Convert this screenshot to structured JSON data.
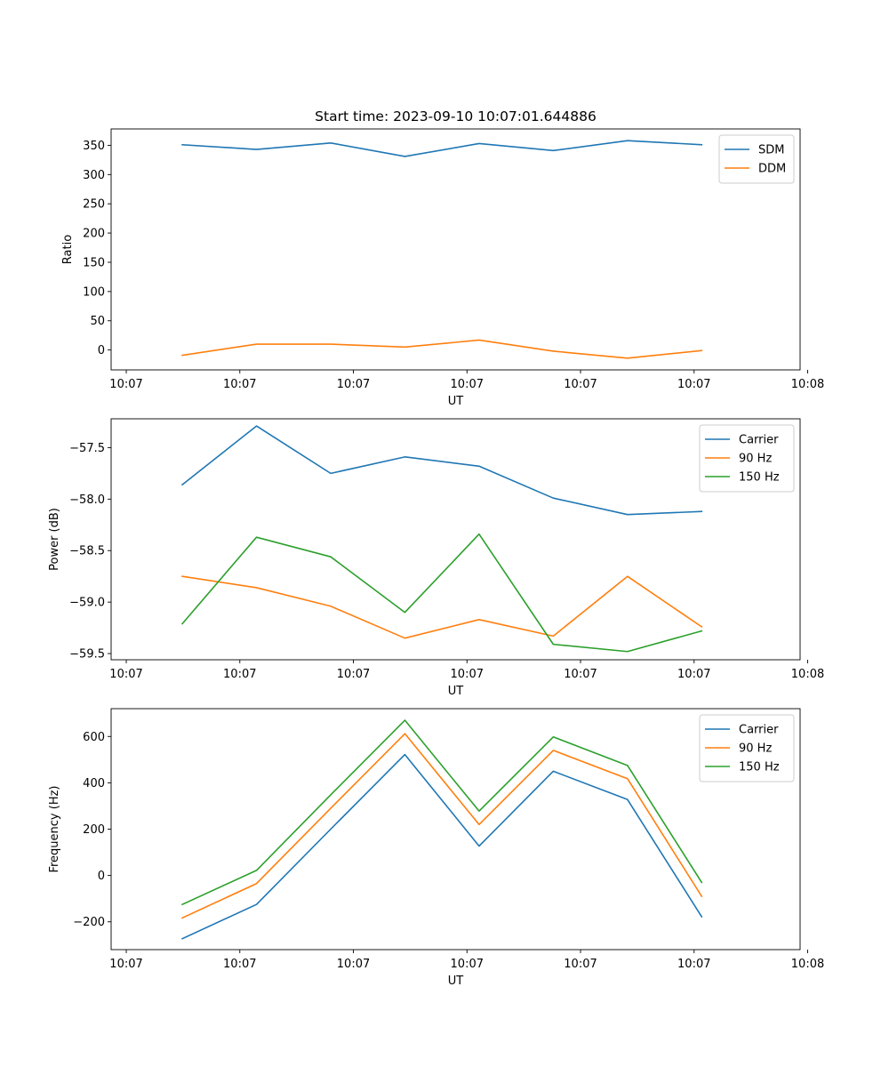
{
  "colors": {
    "blue": "#1f77b4",
    "orange": "#ff7f0e",
    "green": "#2ca02c"
  },
  "chart_data": [
    {
      "type": "line",
      "title": "Start time: 2023-09-10 10:07:01.644886",
      "xlabel": "UT",
      "ylabel": "Ratio",
      "xlim": [
        -0.2,
        8.9
      ],
      "ylim": [
        -34,
        378
      ],
      "xticks": [
        0,
        1.5,
        3,
        4.5,
        6,
        7.5,
        9
      ],
      "xtick_labels": [
        "10:07",
        "10:07",
        "10:07",
        "10:07",
        "10:07",
        "10:07",
        "10:08"
      ],
      "yticks": [
        0,
        50,
        100,
        150,
        200,
        250,
        300,
        350
      ],
      "ytick_labels": [
        "0",
        "50",
        "100",
        "150",
        "200",
        "250",
        "300",
        "350"
      ],
      "legend_position": "top-right",
      "x": [
        0.74,
        1.72,
        2.7,
        3.68,
        4.66,
        5.64,
        6.62,
        7.6
      ],
      "series": [
        {
          "name": "SDM",
          "color": "blue",
          "values": [
            351,
            343,
            354,
            331,
            353,
            341,
            358,
            351
          ]
        },
        {
          "name": "DDM",
          "color": "orange",
          "values": [
            -9,
            10,
            10,
            5,
            17,
            -2,
            -14,
            -1
          ]
        }
      ]
    },
    {
      "type": "line",
      "title": "",
      "xlabel": "UT",
      "ylabel": "Power (dB)",
      "xlim": [
        -0.2,
        8.9
      ],
      "ylim": [
        -59.56,
        -57.22
      ],
      "xticks": [
        0,
        1.5,
        3,
        4.5,
        6,
        7.5,
        9
      ],
      "xtick_labels": [
        "10:07",
        "10:07",
        "10:07",
        "10:07",
        "10:07",
        "10:07",
        "10:08"
      ],
      "yticks": [
        -59.5,
        -59.0,
        -58.5,
        -58.0,
        -57.5
      ],
      "ytick_labels": [
        "−59.5",
        "−59.0",
        "−58.5",
        "−58.0",
        "−57.5"
      ],
      "legend_position": "top-right",
      "x": [
        0.74,
        1.72,
        2.7,
        3.68,
        4.66,
        5.64,
        6.62,
        7.6
      ],
      "series": [
        {
          "name": "Carrier",
          "color": "blue",
          "values": [
            -57.86,
            -57.29,
            -57.75,
            -57.59,
            -57.68,
            -57.99,
            -58.15,
            -58.12
          ]
        },
        {
          "name": "90 Hz",
          "color": "orange",
          "values": [
            -58.75,
            -58.86,
            -59.04,
            -59.35,
            -59.17,
            -59.33,
            -58.75,
            -59.24
          ]
        },
        {
          "name": "150 Hz",
          "color": "green",
          "values": [
            -59.21,
            -58.37,
            -58.56,
            -59.1,
            -58.34,
            -59.41,
            -59.48,
            -59.28
          ]
        }
      ]
    },
    {
      "type": "line",
      "title": "",
      "xlabel": "UT",
      "ylabel": "Frequency (Hz)",
      "xlim": [
        -0.2,
        8.9
      ],
      "ylim": [
        -320,
        720
      ],
      "xticks": [
        0,
        1.5,
        3,
        4.5,
        6,
        7.5,
        9
      ],
      "xtick_labels": [
        "10:07",
        "10:07",
        "10:07",
        "10:07",
        "10:07",
        "10:07",
        "10:08"
      ],
      "yticks": [
        -200,
        0,
        200,
        400,
        600
      ],
      "ytick_labels": [
        "−200",
        "0",
        "200",
        "400",
        "600"
      ],
      "legend_position": "top-right",
      "x": [
        0.74,
        1.72,
        2.7,
        3.68,
        4.66,
        5.64,
        6.62,
        7.6
      ],
      "series": [
        {
          "name": "Carrier",
          "color": "blue",
          "values": [
            -273,
            -125,
            200,
            522,
            127,
            450,
            328,
            -178
          ]
        },
        {
          "name": "90 Hz",
          "color": "orange",
          "values": [
            -183,
            -35,
            290,
            612,
            220,
            540,
            418,
            -90
          ]
        },
        {
          "name": "150 Hz",
          "color": "green",
          "values": [
            -125,
            22,
            348,
            670,
            278,
            598,
            475,
            -30
          ]
        }
      ]
    }
  ]
}
